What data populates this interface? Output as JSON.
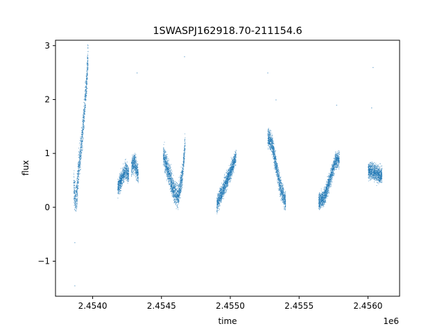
{
  "chart_data": {
    "type": "scatter",
    "title": "1SWASPJ162918.70-211154.6",
    "xlabel": "time",
    "ylabel": "flux",
    "x_offset_label": "1e6",
    "xlim": [
      2453730,
      2456230
    ],
    "ylim": [
      -1.65,
      3.1
    ],
    "xticks": [
      2.454,
      2.4545,
      2.455,
      2.4555,
      2.456
    ],
    "xtick_labels": [
      "2.4540",
      "2.4545",
      "2.4550",
      "2.4555",
      "2.4560"
    ],
    "yticks": [
      -1,
      0,
      1,
      2,
      3
    ],
    "ytick_labels": [
      "−1",
      "0",
      "1",
      "2",
      "3"
    ],
    "grid": false,
    "legend": "none",
    "marker_color": "#1f77b4",
    "series": [
      {
        "segments": [
          {
            "x_start": 2453860,
            "x_end": 2453965,
            "points": [
              [
                2453860,
                0.4
              ],
              [
                2453875,
                0.1
              ],
              [
                2453885,
                0.3
              ],
              [
                2453895,
                0.7
              ],
              [
                2453910,
                1.0
              ],
              [
                2453925,
                1.4
              ],
              [
                2453940,
                1.9
              ],
              [
                2453955,
                2.4
              ],
              [
                2453965,
                2.8
              ]
            ],
            "spread": 0.55
          },
          {
            "x_start": 2454180,
            "x_end": 2454260,
            "points": [
              [
                2454180,
                0.35
              ],
              [
                2454210,
                0.55
              ],
              [
                2454240,
                0.7
              ],
              [
                2454260,
                0.6
              ]
            ],
            "spread": 0.3
          },
          {
            "x_start": 2454280,
            "x_end": 2454330,
            "points": [
              [
                2454280,
                0.75
              ],
              [
                2454300,
                0.85
              ],
              [
                2454330,
                0.6
              ]
            ],
            "spread": 0.35
          },
          {
            "x_start": 2454510,
            "x_end": 2454670,
            "points": [
              [
                2454510,
                1.0
              ],
              [
                2454550,
                0.65
              ],
              [
                2454590,
                0.3
              ],
              [
                2454620,
                0.2
              ],
              [
                2454650,
                0.6
              ],
              [
                2454670,
                1.2
              ]
            ],
            "spread": 0.4
          },
          {
            "x_start": 2454900,
            "x_end": 2455040,
            "points": [
              [
                2454900,
                0.05
              ],
              [
                2454940,
                0.3
              ],
              [
                2454980,
                0.55
              ],
              [
                2455020,
                0.8
              ],
              [
                2455040,
                0.95
              ]
            ],
            "spread": 0.3
          },
          {
            "x_start": 2455270,
            "x_end": 2455400,
            "points": [
              [
                2455270,
                1.3
              ],
              [
                2455300,
                1.2
              ],
              [
                2455330,
                0.8
              ],
              [
                2455360,
                0.4
              ],
              [
                2455400,
                0.1
              ]
            ],
            "spread": 0.35
          },
          {
            "x_start": 2455640,
            "x_end": 2455790,
            "points": [
              [
                2455640,
                0.1
              ],
              [
                2455680,
                0.2
              ],
              [
                2455720,
                0.5
              ],
              [
                2455760,
                0.85
              ],
              [
                2455790,
                0.9
              ]
            ],
            "spread": 0.3
          },
          {
            "x_start": 2456000,
            "x_end": 2456100,
            "points": [
              [
                2456000,
                0.7
              ],
              [
                2456050,
                0.65
              ],
              [
                2456100,
                0.6
              ]
            ],
            "spread": 0.3
          }
        ],
        "outliers": [
          [
            2453868,
            -1.45
          ],
          [
            2453868,
            -0.65
          ],
          [
            2454320,
            2.5
          ],
          [
            2454665,
            2.8
          ],
          [
            2455270,
            2.5
          ],
          [
            2455330,
            2.0
          ],
          [
            2455770,
            1.9
          ],
          [
            2456035,
            2.6
          ],
          [
            2456025,
            1.85
          ]
        ]
      }
    ]
  }
}
